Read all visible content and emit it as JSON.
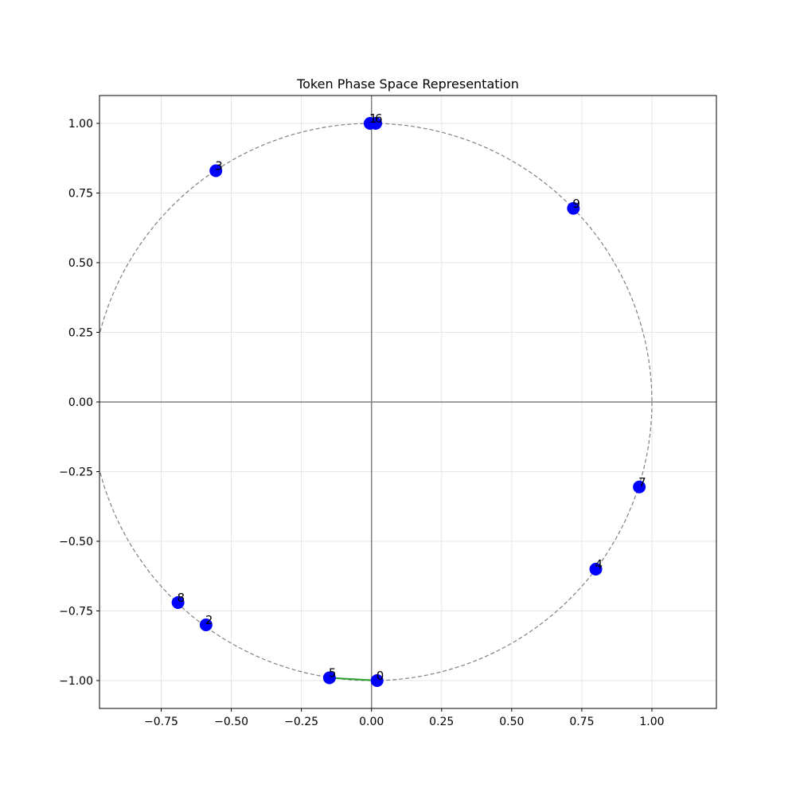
{
  "chart_data": {
    "type": "scatter",
    "title": "Token Phase Space Representation",
    "xlabel": "",
    "ylabel": "",
    "xlim": [
      -0.97,
      1.23
    ],
    "ylim": [
      -1.1,
      1.1
    ],
    "grid": true,
    "x_ticks": [
      "−0.75",
      "−0.50",
      "−0.25",
      "0.00",
      "0.25",
      "0.50",
      "0.75",
      "1.00"
    ],
    "y_ticks": [
      "1.00",
      "0.75",
      "0.50",
      "0.25",
      "0.00",
      "−0.25",
      "−0.50",
      "−0.75",
      "−1.00"
    ],
    "unit_circle": true,
    "points": [
      {
        "label": "0",
        "x": 0.02,
        "y": -1.0
      },
      {
        "label": "1",
        "x": -0.005,
        "y": 1.0
      },
      {
        "label": "6",
        "x": 0.015,
        "y": 1.0
      },
      {
        "label": "2",
        "x": -0.59,
        "y": -0.8
      },
      {
        "label": "3",
        "x": -0.555,
        "y": 0.83
      },
      {
        "label": "4",
        "x": 0.8,
        "y": -0.6
      },
      {
        "label": "5",
        "x": -0.15,
        "y": -0.99
      },
      {
        "label": "7",
        "x": 0.955,
        "y": -0.305
      },
      {
        "label": "8",
        "x": -0.69,
        "y": -0.72
      },
      {
        "label": "9",
        "x": 0.72,
        "y": 0.695
      }
    ],
    "connection": {
      "from": "5",
      "to": "0"
    },
    "colors": {
      "point": "#0000ff",
      "circle": "#808080",
      "axis_lines": "#808080",
      "grid": "#e5e5e5",
      "connection": "#2ca02c"
    }
  }
}
